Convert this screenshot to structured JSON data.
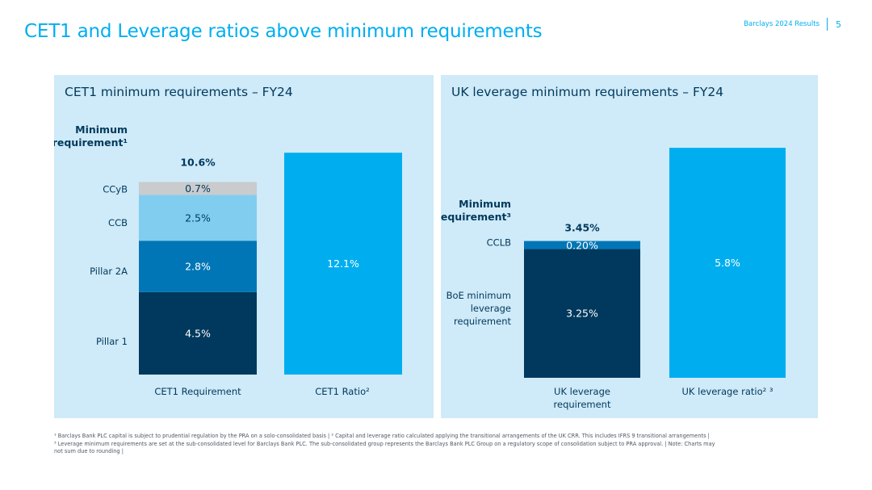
{
  "header": {
    "title": "CET1 and Leverage ratios above minimum requirements",
    "brand": "Barclays 2024 Results",
    "page_number": "5"
  },
  "colors": {
    "pillar1": "#00395d",
    "pillar2a": "#0076b6",
    "ccb": "#81cdf0",
    "ccyb": "#c9cbcd",
    "ratio": "#00aeef",
    "cclb": "#0076b6",
    "panel_bg": "#cfeaf8"
  },
  "chart_data": [
    {
      "type": "bar",
      "stacked": true,
      "title": "CET1 minimum requirements – FY24",
      "categories": [
        "CET1 Requirement",
        "CET1 Ratio²"
      ],
      "ylim": [
        0,
        12.9
      ],
      "total_label": "10.6%",
      "min_label_line1": "Minimum",
      "min_label_line2": "requirement¹",
      "series": [
        {
          "name": "Pillar 1",
          "values": [
            4.5,
            null
          ],
          "label": "4.5%",
          "color_key": "pillar1",
          "text_color": "#ffffff"
        },
        {
          "name": "Pillar 2A",
          "values": [
            2.8,
            null
          ],
          "label": "2.8%",
          "color_key": "pillar2a",
          "text_color": "#ffffff"
        },
        {
          "name": "CCB",
          "values": [
            2.5,
            null
          ],
          "label": "2.5%",
          "color_key": "ccb",
          "text_color": "#00395d"
        },
        {
          "name": "CCyB",
          "values": [
            0.7,
            null
          ],
          "label": "0.7%",
          "color_key": "ccyb",
          "text_color": "#00395d"
        },
        {
          "name": "CET1 Ratio",
          "values": [
            null,
            12.1
          ],
          "label": "12.1%",
          "color_key": "ratio",
          "text_color": "#ffffff"
        }
      ]
    },
    {
      "type": "bar",
      "stacked": true,
      "title": "UK leverage minimum requirements – FY24",
      "categories": [
        "UK leverage requirement",
        "UK leverage ratio² ³"
      ],
      "ylim": [
        0,
        6.25
      ],
      "total_label": "3.45%",
      "min_label_line1": "Minimum",
      "min_label_line2": "requirement³",
      "series": [
        {
          "name": "BoE minimum leverage requirement",
          "values": [
            3.25,
            null
          ],
          "label": "3.25%",
          "color_key": "pillar1",
          "text_color": "#ffffff"
        },
        {
          "name": "CCLB",
          "values": [
            0.2,
            null
          ],
          "label": "0.20%",
          "color_key": "cclb",
          "text_color": "#ffffff"
        },
        {
          "name": "UK leverage ratio",
          "values": [
            null,
            5.8
          ],
          "label": "5.8%",
          "color_key": "ratio",
          "text_color": "#ffffff"
        }
      ]
    }
  ],
  "cet1_chart": {
    "title": "CET1 minimum requirements – FY24",
    "seg_labels": [
      "Pillar 1",
      "Pillar 2A",
      "CCB",
      "CCyB"
    ],
    "seg_label_colors": [
      "#00395d",
      "#0076b6",
      "#48b4e6",
      "#4a5a68"
    ],
    "xlabels": [
      "CET1 Requirement",
      "CET1 Ratio²"
    ]
  },
  "lev_chart": {
    "title": "UK leverage minimum requirements – FY24",
    "seg_labels_boe": [
      "BoE minimum",
      "leverage",
      "requirement"
    ],
    "seg_label_cclb": "CCLB",
    "xlabel1_line1": "UK leverage",
    "xlabel1_line2": "requirement",
    "xlabel2": "UK leverage ratio² ³"
  },
  "footnotes": {
    "line1": "¹ Barclays Bank PLC capital is subject to prudential regulation by the PRA on a solo-consolidated basis | ² Capital and leverage ratio calculated applying the transitional arrangements of the UK CRR. This includes IFRS 9 transitional arrangements |",
    "line2": "³ Leverage minimum requirements are set at the sub-consolidated level for Barclays Bank PLC. The sub-consolidated group represents the Barclays Bank PLC Group on a regulatory scope of consolidation subject to PRA approval. | Note: Charts may",
    "line3": "not sum due to rounding |"
  }
}
